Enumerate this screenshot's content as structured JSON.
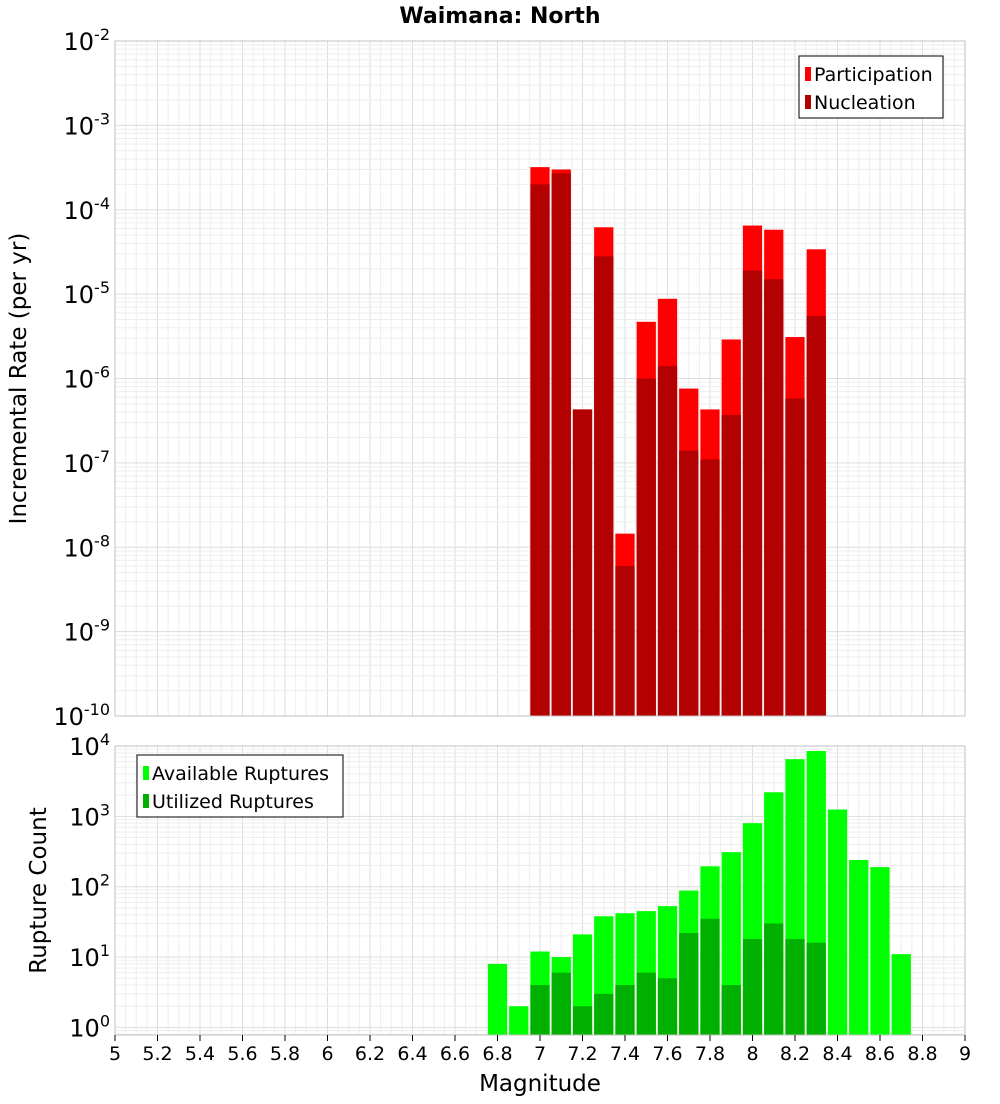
{
  "chart_title": "Waimana: North",
  "chart_data": [
    {
      "type": "bar",
      "title": "Waimana: North",
      "ylabel": "Incremental Rate (per yr)",
      "xlabel": "",
      "y_scale": "log",
      "ylim": [
        1e-10,
        0.01
      ],
      "xlim": [
        5,
        9
      ],
      "grid": true,
      "legend_position": "top-right",
      "y_ticks": [
        {
          "base": "10",
          "exp": "-10"
        },
        {
          "base": "10",
          "exp": "-9"
        },
        {
          "base": "10",
          "exp": "-8"
        },
        {
          "base": "10",
          "exp": "-7"
        },
        {
          "base": "10",
          "exp": "-6"
        },
        {
          "base": "10",
          "exp": "-5"
        },
        {
          "base": "10",
          "exp": "-4"
        },
        {
          "base": "10",
          "exp": "-3"
        },
        {
          "base": "10",
          "exp": "-2"
        }
      ],
      "x": [
        7.0,
        7.1,
        7.2,
        7.3,
        7.4,
        7.5,
        7.6,
        7.7,
        7.8,
        7.9,
        8.0,
        8.1,
        8.2,
        8.3
      ],
      "series": [
        {
          "name": "Participation",
          "color": "#ff0000",
          "values": [
            0.00032,
            0.0003,
            4.3e-07,
            6.2e-05,
            1.45e-08,
            4.7e-06,
            8.8e-06,
            7.6e-07,
            4.3e-07,
            2.9e-06,
            6.5e-05,
            5.8e-05,
            3.1e-06,
            3.4e-05
          ]
        },
        {
          "name": "Nucleation",
          "color": "#b30000",
          "values": [
            0.0002,
            0.00027,
            4.3e-07,
            2.8e-05,
            6e-09,
            1e-06,
            1.4e-06,
            1.4e-07,
            1.1e-07,
            3.7e-07,
            1.9e-05,
            1.5e-05,
            5.8e-07,
            5.5e-06
          ]
        }
      ]
    },
    {
      "type": "bar",
      "title": "",
      "ylabel": "Rupture Count",
      "xlabel": "Magnitude",
      "y_scale": "log",
      "ylim": [
        0.78,
        10000
      ],
      "xlim": [
        5,
        9
      ],
      "grid": true,
      "legend_position": "top-left",
      "y_ticks": [
        {
          "base": "10",
          "exp": "0"
        },
        {
          "base": "10",
          "exp": "1"
        },
        {
          "base": "10",
          "exp": "2"
        },
        {
          "base": "10",
          "exp": "3"
        },
        {
          "base": "10",
          "exp": "4"
        }
      ],
      "x_ticks": [
        "5",
        "5.2",
        "5.4",
        "5.6",
        "5.8",
        "6",
        "6.2",
        "6.4",
        "6.6",
        "6.8",
        "7",
        "7.2",
        "7.4",
        "7.6",
        "7.8",
        "8",
        "8.2",
        "8.4",
        "8.6",
        "8.8",
        "9"
      ],
      "x": [
        6.8,
        6.9,
        7.0,
        7.1,
        7.2,
        7.3,
        7.4,
        7.5,
        7.6,
        7.7,
        7.8,
        7.9,
        8.0,
        8.1,
        8.2,
        8.3,
        8.4,
        8.5,
        8.6,
        8.7
      ],
      "series": [
        {
          "name": "Available Ruptures",
          "color": "#00ff00",
          "values": [
            8,
            2,
            12,
            10,
            21,
            38,
            42,
            45,
            53,
            88,
            195,
            310,
            800,
            2200,
            6500,
            8500,
            1250,
            240,
            190,
            11
          ]
        },
        {
          "name": "Utilized Ruptures",
          "color": "#00b000",
          "values": [
            0,
            0,
            4,
            6,
            2,
            3,
            4,
            6,
            5,
            22,
            35,
            4,
            18,
            30,
            18,
            16,
            0,
            0,
            0,
            0
          ]
        }
      ]
    }
  ]
}
